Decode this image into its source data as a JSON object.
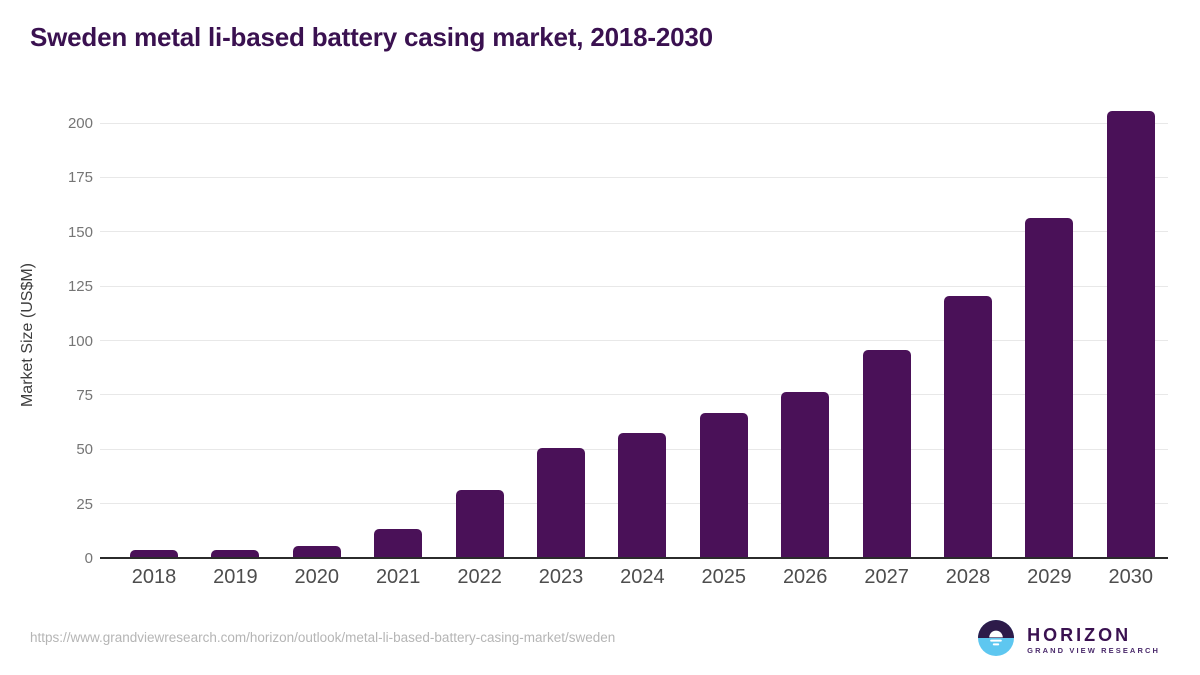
{
  "title": "Sweden metal li-based battery casing market, 2018-2030",
  "source_url": "https://www.grandviewresearch.com/horizon/outlook/metal-li-based-battery-casing-market/sweden",
  "logo": {
    "name": "HORIZON",
    "subtitle": "GRAND VIEW RESEARCH",
    "icon": "horizon-sun-over-water-icon",
    "icon_dark_color": "#2d1b4a",
    "icon_blue_color": "#5ec7f0"
  },
  "colors": {
    "title": "#3a1150",
    "bar": "#4a1158",
    "gridline": "#e8e8e8",
    "axis_line": "#2b2b2b",
    "y_tick": "#757575",
    "x_tick": "#4d4d4d",
    "y_axis_title": "#3d3d3d",
    "url_text": "#b5b5b5",
    "background": "#ffffff"
  },
  "chart_data": {
    "type": "bar",
    "title": "Sweden metal li-based battery casing market, 2018-2030",
    "categories": [
      "2018",
      "2019",
      "2020",
      "2021",
      "2022",
      "2023",
      "2024",
      "2025",
      "2026",
      "2027",
      "2028",
      "2029",
      "2030"
    ],
    "values": [
      3,
      3,
      5,
      13,
      31,
      50,
      57,
      66,
      76,
      95,
      120,
      156,
      205
    ],
    "xlabel": "",
    "ylabel": "Market Size (US$M)",
    "ylim": [
      0,
      200
    ],
    "yticks": [
      0,
      25,
      50,
      75,
      100,
      125,
      150,
      175,
      200
    ],
    "grid": true,
    "legend": "none",
    "bar_color": "#4a1158"
  }
}
